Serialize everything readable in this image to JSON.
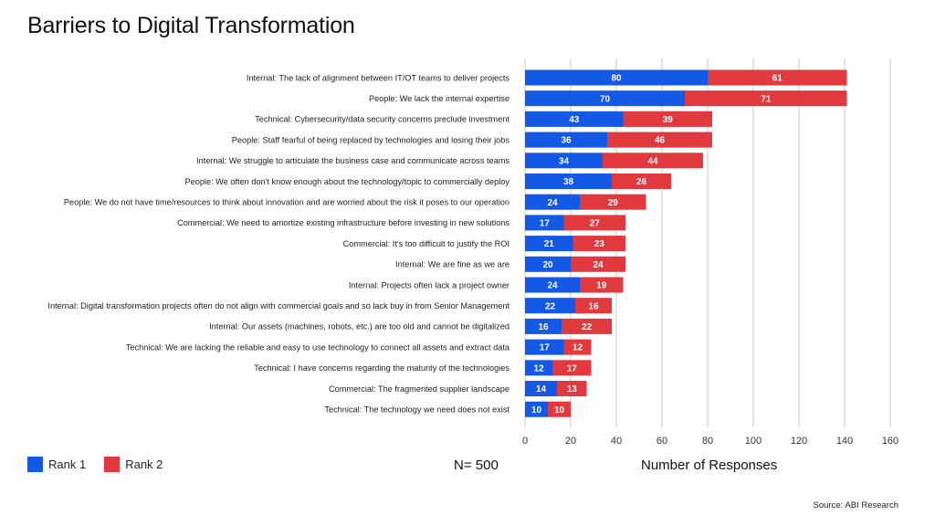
{
  "title": "Barriers to Digital Transformation",
  "n_label": "N= 500",
  "source": "Source: ABI Research",
  "colors": {
    "rank1": "#1458e6",
    "rank2": "#e0393e",
    "grid": "#c8c8c8"
  },
  "chart_data": {
    "type": "bar",
    "orientation": "horizontal",
    "stacked": true,
    "title": "Barriers to Digital Transformation",
    "xlabel": "Number of Responses",
    "ylabel": "",
    "xlim": [
      0,
      160
    ],
    "xticks": [
      0,
      20,
      40,
      60,
      80,
      100,
      120,
      140,
      160
    ],
    "grid": true,
    "legend_position": "bottom-left",
    "categories": [
      "Internal: The lack of alignment between IT/OT teams to deliver projects",
      "People: We lack the internal expertise",
      "Technical: Cybersecurity/data security concerns preclude investment",
      "People: Staff fearful of being replaced by technologies and losing their jobs",
      "Internal: We struggle to articulate the business case and communicate across teams",
      "People: We often don't know enough about the technology/topic to commercially deploy",
      "People: We do not have time/resources to think about innovation and are worried about the risk it poses to our operation",
      "Commercial: We need to amortize existing infrastructure before investing in new solutions",
      "Commercial: It's too difficult to justify the ROI",
      "Internal: We are fine as we are",
      "Internal: Projects often lack a project owner",
      "Internal: Digital transformation projects often do not align with commercial goals and so lack buy in from Senior Management",
      "Internal: Our assets (machines, robots, etc.) are too old and cannot be digitalized",
      "Technical: We are lacking the reliable and easy to use technology to connect all assets and extract data",
      "Technical: I have concerns regarding the maturity of the technologies",
      "Commercial: The fragmented supplier landscape",
      "Technical: The technology we need does not exist"
    ],
    "series": [
      {
        "name": "Rank 1",
        "values": [
          80,
          70,
          43,
          36,
          34,
          38,
          24,
          17,
          21,
          20,
          24,
          22,
          16,
          17,
          12,
          14,
          10
        ]
      },
      {
        "name": "Rank 2",
        "values": [
          61,
          71,
          39,
          46,
          44,
          26,
          29,
          27,
          23,
          24,
          19,
          16,
          22,
          12,
          17,
          13,
          10
        ]
      }
    ]
  }
}
